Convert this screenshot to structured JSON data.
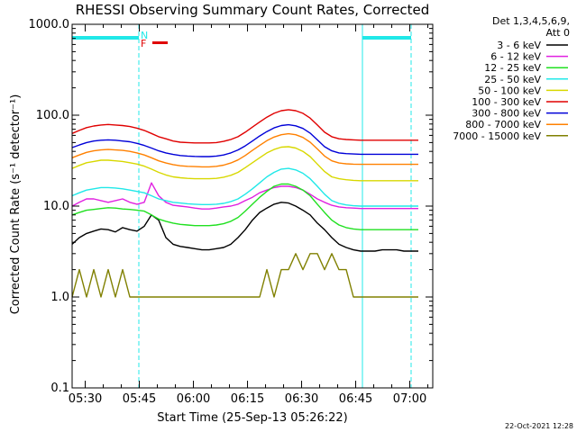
{
  "chart_data": {
    "type": "line",
    "title": "RHESSI Observing Summary Count Rates, Corrected",
    "ylabel": "Corrected Count Rate (s⁻¹ detector⁻¹)",
    "xlabel": "Start Time (25-Sep-13 05:26:22)",
    "y_scale": "log",
    "ylim": [
      0.1,
      1000
    ],
    "y_ticks": [
      0.1,
      1,
      10,
      100,
      1000
    ],
    "y_tick_labels": [
      "0.1",
      "1.0",
      "10.0",
      "100.0",
      "1000.0"
    ],
    "xlim_min": [
      0,
      100
    ],
    "x_ticks_min": [
      3.633,
      18.633,
      33.633,
      48.633,
      63.633,
      78.633,
      93.633
    ],
    "x_tick_labels": [
      "05:30",
      "05:45",
      "06:00",
      "06:15",
      "06:30",
      "06:45",
      "07:00"
    ],
    "detector_note": "Det 1,3,4,5,6,9,",
    "attenuator_note": "Att 0",
    "flags": {
      "N_label": "N",
      "F_label": "F"
    },
    "timestamp": "22-Oct-2021 12:28",
    "night_intervals_min": [
      [
        0,
        18.5
      ],
      [
        80.5,
        94
      ]
    ],
    "vlines_solid_min": [
      0,
      80.5
    ],
    "vlines_dashed_min": [
      18.5,
      94
    ],
    "series": [
      {
        "name": "3 - 6 keV",
        "color": "#000000",
        "x": [
          0,
          2,
          4,
          6,
          8,
          10,
          12,
          14,
          16,
          18,
          20,
          22,
          24,
          26,
          28,
          30,
          32,
          34,
          36,
          38,
          40,
          42,
          44,
          46,
          48,
          50,
          52,
          54,
          56,
          58,
          60,
          62,
          64,
          66,
          68,
          70,
          72,
          74,
          76,
          78,
          80,
          82,
          84,
          86,
          88,
          90,
          92,
          94,
          96
        ],
        "y": [
          3.8,
          4.5,
          5,
          5.3,
          5.6,
          5.5,
          5.2,
          5.8,
          5.5,
          5.3,
          6,
          8,
          7,
          4.5,
          3.8,
          3.6,
          3.5,
          3.4,
          3.3,
          3.3,
          3.4,
          3.5,
          3.8,
          4.5,
          5.5,
          7,
          8.5,
          9.5,
          10.5,
          11,
          10.8,
          10,
          9,
          8,
          6.5,
          5.5,
          4.5,
          3.8,
          3.5,
          3.3,
          3.2,
          3.2,
          3.2,
          3.3,
          3.3,
          3.3,
          3.2,
          3.2,
          3.2
        ]
      },
      {
        "name": "6 - 12 keV",
        "color": "#e020e0",
        "x": [
          0,
          2,
          4,
          6,
          8,
          10,
          12,
          14,
          16,
          18,
          20,
          22,
          24,
          26,
          28,
          30,
          32,
          34,
          36,
          38,
          40,
          42,
          44,
          46,
          48,
          50,
          52,
          54,
          56,
          58,
          60,
          62,
          64,
          66,
          68,
          70,
          72,
          74,
          76,
          78,
          80,
          82,
          84,
          86,
          88,
          90,
          92,
          94,
          96
        ],
        "y": [
          10,
          11,
          12,
          12,
          11.5,
          11,
          11.5,
          12,
          11,
          10.5,
          11,
          18,
          13,
          11,
          10.2,
          10,
          9.8,
          9.5,
          9.3,
          9.3,
          9.5,
          9.8,
          10,
          10.5,
          11.5,
          12.5,
          14,
          15,
          16,
          16.5,
          16.5,
          16,
          15,
          13.5,
          12,
          11,
          10.2,
          9.8,
          9.6,
          9.5,
          9.4,
          9.4,
          9.4,
          9.4,
          9.4,
          9.4,
          9.4,
          9.4,
          9.4
        ]
      },
      {
        "name": "12 - 25 keV",
        "color": "#20e020",
        "x": [
          0,
          2,
          4,
          6,
          8,
          10,
          12,
          14,
          16,
          18,
          20,
          22,
          24,
          26,
          28,
          30,
          32,
          34,
          36,
          38,
          40,
          42,
          44,
          46,
          48,
          50,
          52,
          54,
          56,
          58,
          60,
          62,
          64,
          66,
          68,
          70,
          72,
          74,
          76,
          78,
          80,
          82,
          84,
          86,
          88,
          90,
          92,
          94,
          96
        ],
        "y": [
          8,
          8.5,
          9,
          9.2,
          9.4,
          9.6,
          9.5,
          9.3,
          9.2,
          9,
          8.8,
          8,
          7.2,
          6.8,
          6.5,
          6.3,
          6.2,
          6.1,
          6.1,
          6.1,
          6.2,
          6.4,
          6.8,
          7.5,
          8.8,
          10.5,
          12.5,
          14.5,
          16.5,
          17.5,
          17.5,
          16.5,
          15,
          13,
          10.5,
          8.5,
          7,
          6.2,
          5.8,
          5.6,
          5.5,
          5.5,
          5.5,
          5.5,
          5.5,
          5.5,
          5.5,
          5.5,
          5.5
        ]
      },
      {
        "name": "25 - 50 keV",
        "color": "#20e8e8",
        "x": [
          0,
          2,
          4,
          6,
          8,
          10,
          12,
          14,
          16,
          18,
          20,
          22,
          24,
          26,
          28,
          30,
          32,
          34,
          36,
          38,
          40,
          42,
          44,
          46,
          48,
          50,
          52,
          54,
          56,
          58,
          60,
          62,
          64,
          66,
          68,
          70,
          72,
          74,
          76,
          78,
          80,
          82,
          84,
          86,
          88,
          90,
          92,
          94,
          96
        ],
        "y": [
          13,
          14,
          15,
          15.5,
          16,
          16,
          15.8,
          15.5,
          15,
          14.5,
          14,
          13,
          12,
          11.5,
          11,
          10.8,
          10.6,
          10.5,
          10.4,
          10.4,
          10.5,
          10.7,
          11.2,
          12,
          13.5,
          15.5,
          18,
          21,
          23.5,
          25.5,
          26,
          25,
          23,
          20,
          16.5,
          13.5,
          11.5,
          10.7,
          10.3,
          10.1,
          10,
          10,
          10,
          10,
          10,
          10,
          10,
          10,
          10
        ]
      },
      {
        "name": "50 - 100 keV",
        "color": "#d8d800",
        "x": [
          0,
          2,
          4,
          6,
          8,
          10,
          12,
          14,
          16,
          18,
          20,
          22,
          24,
          26,
          28,
          30,
          32,
          34,
          36,
          38,
          40,
          42,
          44,
          46,
          48,
          50,
          52,
          54,
          56,
          58,
          60,
          62,
          64,
          66,
          68,
          70,
          72,
          74,
          76,
          78,
          80,
          82,
          84,
          86,
          88,
          90,
          92,
          94,
          96
        ],
        "y": [
          26,
          28,
          30,
          31,
          32,
          32,
          31.5,
          31,
          30,
          29,
          27.5,
          25.5,
          23.5,
          22,
          21,
          20.5,
          20.2,
          20,
          20,
          20,
          20.2,
          20.8,
          21.8,
          23.5,
          26.5,
          30,
          34,
          38.5,
          42,
          44.5,
          45,
          43.5,
          40,
          35,
          29,
          24,
          21,
          20,
          19.5,
          19.2,
          19,
          19,
          19,
          19,
          19,
          19,
          19,
          19,
          19
        ]
      },
      {
        "name": "100 - 300 keV",
        "color": "#e00000",
        "x": [
          0,
          2,
          4,
          6,
          8,
          10,
          12,
          14,
          16,
          18,
          20,
          22,
          24,
          26,
          28,
          30,
          32,
          34,
          36,
          38,
          40,
          42,
          44,
          46,
          48,
          50,
          52,
          54,
          56,
          58,
          60,
          62,
          64,
          66,
          68,
          70,
          72,
          74,
          76,
          78,
          80,
          82,
          84,
          86,
          88,
          90,
          92,
          94,
          96
        ],
        "y": [
          63,
          68,
          73,
          76,
          78,
          79,
          78,
          77,
          75,
          72,
          68,
          63,
          58,
          55,
          52,
          50.5,
          50,
          49.5,
          49.5,
          49.5,
          50,
          51.5,
          54,
          58,
          65,
          74,
          84,
          95,
          105,
          112,
          115,
          112,
          105,
          93,
          78,
          65,
          58,
          55,
          54,
          53.5,
          53,
          53,
          53,
          53,
          53,
          53,
          53,
          53,
          53
        ]
      },
      {
        "name": "300 - 800 keV",
        "color": "#0000d8",
        "x": [
          0,
          2,
          4,
          6,
          8,
          10,
          12,
          14,
          16,
          18,
          20,
          22,
          24,
          26,
          28,
          30,
          32,
          34,
          36,
          38,
          40,
          42,
          44,
          46,
          48,
          50,
          52,
          54,
          56,
          58,
          60,
          62,
          64,
          66,
          68,
          70,
          72,
          74,
          76,
          78,
          80,
          82,
          84,
          86,
          88,
          90,
          92,
          94,
          96
        ],
        "y": [
          44,
          47,
          50,
          52,
          53,
          53.5,
          53,
          52,
          51,
          49,
          46.5,
          43.5,
          40.5,
          38.5,
          37,
          36,
          35.5,
          35.2,
          35,
          35,
          35.5,
          36.5,
          38.5,
          41.5,
          46,
          52,
          59,
          66,
          72.5,
          77,
          78.5,
          76.5,
          71.5,
          63.5,
          53.5,
          45,
          40.5,
          38.5,
          37.8,
          37.4,
          37.2,
          37.2,
          37.2,
          37.2,
          37.2,
          37.2,
          37.2,
          37.2,
          37.2
        ]
      },
      {
        "name": "800 - 7000 keV",
        "color": "#ff8000",
        "x": [
          0,
          2,
          4,
          6,
          8,
          10,
          12,
          14,
          16,
          18,
          20,
          22,
          24,
          26,
          28,
          30,
          32,
          34,
          36,
          38,
          40,
          42,
          44,
          46,
          48,
          50,
          52,
          54,
          56,
          58,
          60,
          62,
          64,
          66,
          68,
          70,
          72,
          74,
          76,
          78,
          80,
          82,
          84,
          86,
          88,
          90,
          92,
          94,
          96
        ],
        "y": [
          34,
          36.5,
          39,
          40.5,
          41.5,
          42,
          41.5,
          41,
          40,
          38.5,
          36.5,
          34,
          31.5,
          29.8,
          28.6,
          27.8,
          27.4,
          27.2,
          27,
          27,
          27.4,
          28.2,
          29.8,
          32.2,
          36,
          41,
          46.5,
          52.5,
          57.5,
          61,
          62.5,
          61,
          57,
          50.5,
          42.5,
          35.5,
          31.5,
          29.8,
          29.2,
          28.9,
          28.8,
          28.8,
          28.8,
          28.8,
          28.8,
          28.8,
          28.8,
          28.8,
          28.8
        ]
      },
      {
        "name": "7000 - 15000 keV",
        "color": "#808000",
        "x": [
          0,
          2,
          4,
          6,
          8,
          10,
          12,
          14,
          16,
          18,
          20,
          22,
          24,
          26,
          28,
          30,
          32,
          34,
          36,
          38,
          40,
          42,
          44,
          46,
          48,
          50,
          52,
          54,
          56,
          58,
          60,
          62,
          64,
          66,
          68,
          70,
          72,
          74,
          76,
          78,
          80,
          82,
          84,
          86,
          88,
          90,
          92,
          94,
          96
        ],
        "y": [
          1,
          2,
          1,
          2,
          1,
          2,
          1,
          2,
          1,
          1,
          1,
          1,
          1,
          1,
          1,
          1,
          1,
          1,
          1,
          1,
          1,
          1,
          1,
          1,
          1,
          1,
          1,
          2,
          1,
          2,
          2,
          3,
          2,
          3,
          3,
          2,
          3,
          2,
          2,
          1,
          1,
          1,
          1,
          1,
          1,
          1,
          1,
          1,
          1
        ]
      }
    ]
  }
}
